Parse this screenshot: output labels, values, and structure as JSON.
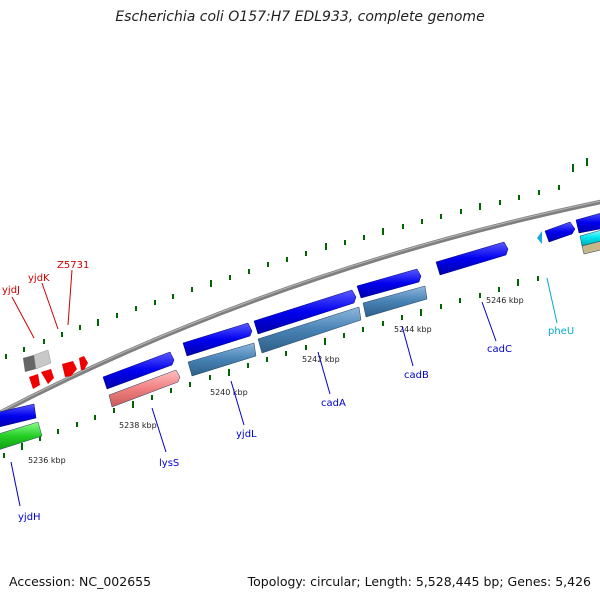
{
  "title": "Escherichia coli O157:H7 EDL933, complete genome",
  "footer": {
    "accession": "Accession: NC_002655",
    "stats": "Topology: circular; Length: 5,528,445 bp; Genes: 5,426"
  },
  "ticks": [
    "5236 kbp",
    "5238 kbp",
    "5240 kbp",
    "5242 kbp",
    "5244 kbp",
    "5246 kbp"
  ],
  "genes": [
    {
      "name": "yjdH",
      "color": "#0000cc"
    },
    {
      "name": "lysS",
      "color": "#0000cc"
    },
    {
      "name": "yjdL",
      "color": "#0000cc"
    },
    {
      "name": "cadA",
      "color": "#0000cc"
    },
    {
      "name": "cadB",
      "color": "#0000cc"
    },
    {
      "name": "cadC",
      "color": "#0000cc"
    },
    {
      "name": "pheU",
      "color": "#00aacc"
    },
    {
      "name": "yjdJ",
      "color": "#cc0000"
    },
    {
      "name": "yjdK",
      "color": "#cc0000"
    },
    {
      "name": "Z5731",
      "color": "#cc0000"
    }
  ],
  "colors": {
    "cds_blue": "#0000ee",
    "cds_steel": "#4682b4",
    "cds_pink": "#f08080",
    "cds_green": "#22cc22",
    "rna_red": "#ee0000",
    "trna_cyan": "#00e5ee",
    "backbone": "#808080",
    "tick": "#006400"
  }
}
